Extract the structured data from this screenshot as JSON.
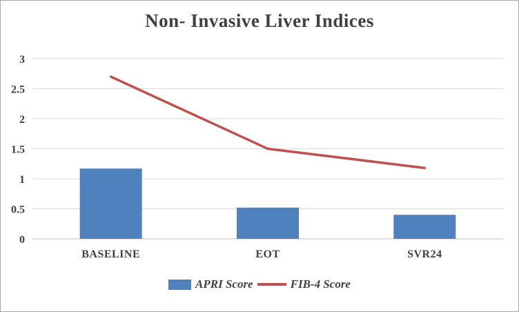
{
  "title": "Non- Invasive Liver Indices",
  "chart_data": {
    "type": "bar",
    "title": "Non- Invasive Liver Indices",
    "categories": [
      "BASELINE",
      "EOT",
      "SVR24"
    ],
    "series": [
      {
        "name": "APRI Score",
        "type": "bar",
        "color": "#4f81bd",
        "values": [
          1.17,
          0.52,
          0.4
        ]
      },
      {
        "name": "FIB-4 Score",
        "type": "line",
        "color": "#c0504d",
        "values": [
          2.7,
          1.5,
          1.18
        ]
      }
    ],
    "xlabel": "",
    "ylabel": "",
    "ylim": [
      0,
      3
    ],
    "ytick_step": 0.5,
    "ytick_labels": [
      "0",
      "0.5",
      "1",
      "1.5",
      "2",
      "2.5",
      "3"
    ],
    "grid": true,
    "gridline_color": "#d9d9d9",
    "axis_line_color": "#bfbfbf",
    "legend_position": "bottom"
  }
}
